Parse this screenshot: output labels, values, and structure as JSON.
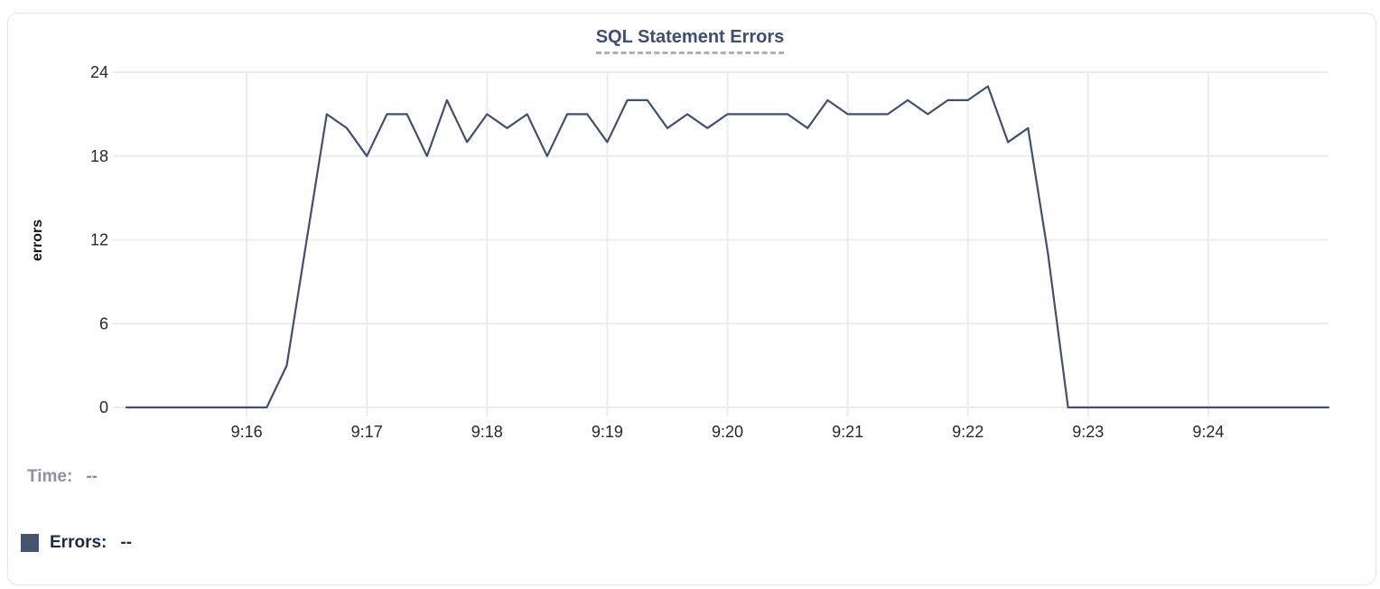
{
  "chart_data": {
    "type": "line",
    "title": "SQL Statement Errors",
    "xlabel": "",
    "ylabel": "errors",
    "ylim": [
      0,
      24
    ],
    "y_ticks": [
      0,
      6,
      12,
      18,
      24
    ],
    "x_ticks": [
      "9:16",
      "9:17",
      "9:18",
      "9:19",
      "9:20",
      "9:21",
      "9:22",
      "9:23",
      "9:24"
    ],
    "x_range": [
      "9:15:00",
      "9:25:00"
    ],
    "x_step_seconds": 10,
    "grid": true,
    "legend_position": "bottom-left",
    "series": [
      {
        "name": "Errors",
        "color": "#42506F",
        "values": [
          0,
          0,
          0,
          0,
          0,
          0,
          0,
          0,
          3,
          12,
          21,
          20,
          18,
          21,
          21,
          18,
          22,
          19,
          21,
          20,
          21,
          18,
          21,
          21,
          19,
          22,
          22,
          20,
          21,
          20,
          21,
          21,
          21,
          21,
          20,
          22,
          21,
          21,
          21,
          22,
          21,
          22,
          22,
          23,
          19,
          20,
          11,
          0,
          0,
          0,
          0,
          0,
          0,
          0,
          0,
          0,
          0,
          0,
          0,
          0,
          0
        ]
      }
    ]
  },
  "legend": {
    "time_label": "Time:",
    "time_value": "--",
    "errors_label": "Errors:",
    "errors_value": "--",
    "swatch_color": "#44536F"
  }
}
